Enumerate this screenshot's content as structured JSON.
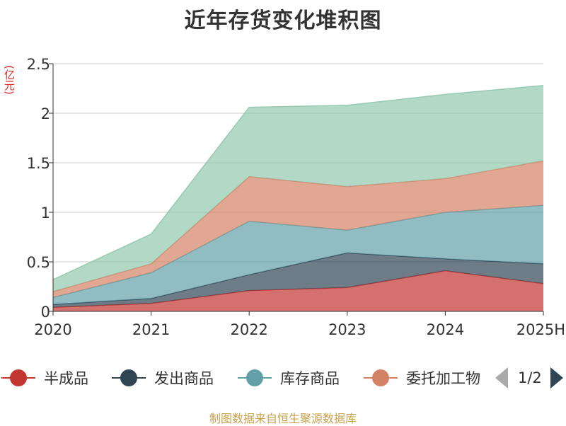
{
  "title": "近年存货变化堆积图",
  "unit_label": "(亿元)",
  "source": "制图数据来自恒生聚源数据库",
  "pager": {
    "label": "1/2"
  },
  "chart_data": {
    "type": "area",
    "stacked": true,
    "x": [
      "2020",
      "2021",
      "2022",
      "2023",
      "2024",
      "2025H"
    ],
    "ylim": [
      0,
      2.5
    ],
    "yticks": [
      0,
      0.5,
      1,
      1.5,
      2,
      2.5
    ],
    "ytick_labels": [
      "0",
      "0.5",
      "1",
      "1.5",
      "2",
      "2.5"
    ],
    "grid": true,
    "legend_position": "bottom",
    "series": [
      {
        "name": "半成品",
        "color": "#c23531",
        "values": [
          0.04,
          0.08,
          0.21,
          0.24,
          0.41,
          0.28
        ]
      },
      {
        "name": "发出商品",
        "color": "#2f4554",
        "values": [
          0.03,
          0.05,
          0.16,
          0.35,
          0.12,
          0.2
        ]
      },
      {
        "name": "库存商品",
        "color": "#61a0a8",
        "values": [
          0.07,
          0.26,
          0.54,
          0.23,
          0.47,
          0.59
        ]
      },
      {
        "name": "委托加工物资",
        "color": "#d48265",
        "values": [
          0.06,
          0.09,
          0.45,
          0.44,
          0.34,
          0.45
        ]
      },
      {
        "name": "",
        "color": "#91c7ae",
        "values": [
          0.12,
          0.3,
          0.7,
          0.82,
          0.85,
          0.76
        ]
      }
    ],
    "legend_visible": [
      "半成品",
      "发出商品",
      "库存商品",
      "委托加工物"
    ]
  }
}
